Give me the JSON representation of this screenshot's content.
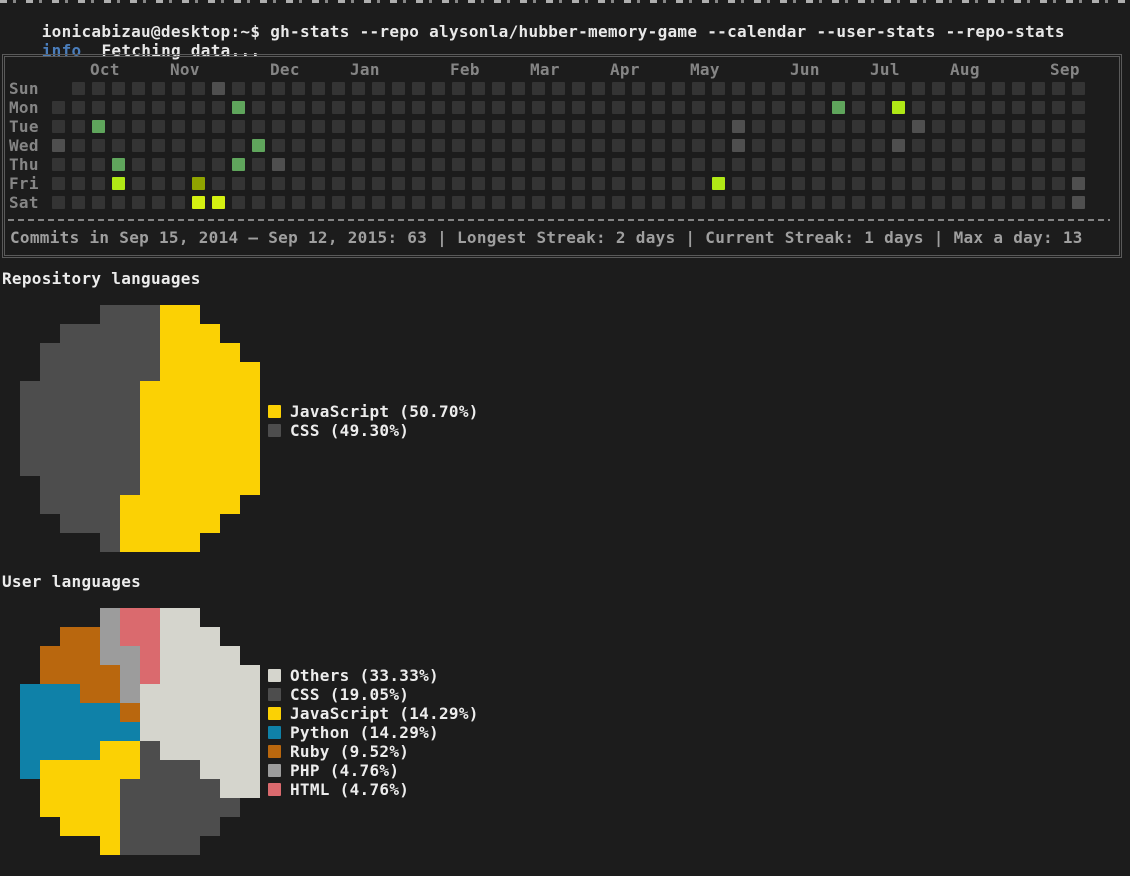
{
  "colors": {
    "background": "#1c1c1c",
    "terminal_text": "#e8e8e8",
    "info_accent": "#4a7dbb",
    "muted_label": "#858585",
    "summary_text": "#9f9f9f",
    "box_border": "#5a5a5a"
  },
  "terminal": {
    "prompt_line": "ionicabizau@desktop:~$ gh-stats --repo alysonla/hubber-memory-game --calendar --user-stats --repo-stats",
    "info_label": "info",
    "info_message": "Fetching data..."
  },
  "chart_data": [
    {
      "type": "heatmap",
      "title": "Commit calendar",
      "day_labels": [
        "Sun",
        "Mon",
        "Tue",
        "Wed",
        "Thu",
        "Fri",
        "Sat"
      ],
      "month_labels": [
        {
          "label": "Oct",
          "week": 2
        },
        {
          "label": "Nov",
          "week": 6
        },
        {
          "label": "Dec",
          "week": 11
        },
        {
          "label": "Jan",
          "week": 15
        },
        {
          "label": "Feb",
          "week": 20
        },
        {
          "label": "Mar",
          "week": 24
        },
        {
          "label": "Apr",
          "week": 28
        },
        {
          "label": "May",
          "week": 32
        },
        {
          "label": "Jun",
          "week": 37
        },
        {
          "label": "Jul",
          "week": 41
        },
        {
          "label": "Aug",
          "week": 45
        },
        {
          "label": "Sep",
          "week": 50
        }
      ],
      "weeks": 52,
      "first_cell_missing": {
        "day": "Sun",
        "week": 0
      },
      "levels": {
        "empty": "#343434",
        "faint": "#4f4f4f",
        "low": "#5fa55c",
        "mid": "#8fa300",
        "high": "#b0e816",
        "max": "#d4f011"
      },
      "marked_cells": [
        {
          "day": "Sun",
          "week": 8,
          "level": "faint"
        },
        {
          "day": "Mon",
          "week": 9,
          "level": "low"
        },
        {
          "day": "Mon",
          "week": 39,
          "level": "low"
        },
        {
          "day": "Mon",
          "week": 42,
          "level": "high"
        },
        {
          "day": "Tue",
          "week": 2,
          "level": "low"
        },
        {
          "day": "Tue",
          "week": 34,
          "level": "faint"
        },
        {
          "day": "Tue",
          "week": 43,
          "level": "faint"
        },
        {
          "day": "Wed",
          "week": 0,
          "level": "faint"
        },
        {
          "day": "Wed",
          "week": 10,
          "level": "low"
        },
        {
          "day": "Wed",
          "week": 34,
          "level": "faint"
        },
        {
          "day": "Wed",
          "week": 42,
          "level": "faint"
        },
        {
          "day": "Thu",
          "week": 3,
          "level": "low"
        },
        {
          "day": "Thu",
          "week": 9,
          "level": "low"
        },
        {
          "day": "Thu",
          "week": 11,
          "level": "faint"
        },
        {
          "day": "Fri",
          "week": 3,
          "level": "high"
        },
        {
          "day": "Fri",
          "week": 7,
          "level": "mid"
        },
        {
          "day": "Fri",
          "week": 33,
          "level": "high"
        },
        {
          "day": "Fri",
          "week": 51,
          "level": "faint"
        },
        {
          "day": "Sat",
          "week": 7,
          "level": "max"
        },
        {
          "day": "Sat",
          "week": 8,
          "level": "max"
        },
        {
          "day": "Sat",
          "week": 51,
          "level": "faint"
        }
      ],
      "summary": "Commits in Sep 15, 2014 — Sep 12, 2015: 63 | Longest Streak: 2 days | Current Streak: 1 days | Max a day: 13",
      "stats": {
        "period_start": "Sep 15, 2014",
        "period_end": "Sep 12, 2015",
        "total_commits": 63,
        "longest_streak_days": 2,
        "current_streak_days": 1,
        "max_commits_a_day": 13
      }
    },
    {
      "type": "pie",
      "title": "Repository languages",
      "legend_position": "right",
      "slices": [
        {
          "label": "JavaScript",
          "value": 50.7,
          "color": "#fbd104"
        },
        {
          "label": "CSS",
          "value": 49.3,
          "color": "#4d4d4d"
        }
      ]
    },
    {
      "type": "pie",
      "title": "User languages",
      "legend_position": "right",
      "slices": [
        {
          "label": "Others",
          "value": 33.33,
          "color": "#d5d5cd"
        },
        {
          "label": "CSS",
          "value": 19.05,
          "color": "#4d4d4d"
        },
        {
          "label": "JavaScript",
          "value": 14.29,
          "color": "#fbd104"
        },
        {
          "label": "Python",
          "value": 14.29,
          "color": "#0f81a8"
        },
        {
          "label": "Ruby",
          "value": 9.52,
          "color": "#b9670e"
        },
        {
          "label": "PHP",
          "value": 4.76,
          "color": "#9c9c9c"
        },
        {
          "label": "HTML",
          "value": 4.76,
          "color": "#da6a6e"
        }
      ]
    }
  ]
}
